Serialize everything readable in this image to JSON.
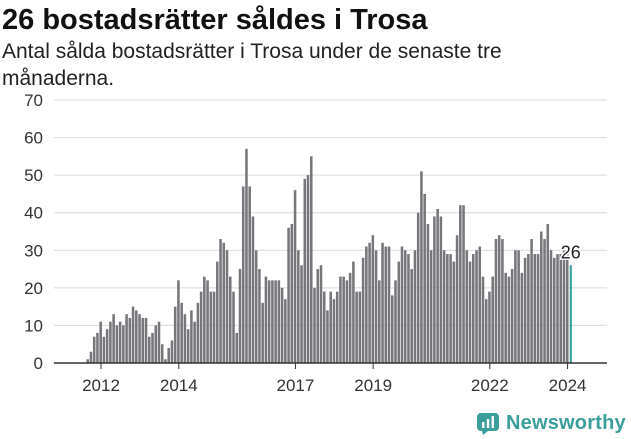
{
  "title": "26 bostadsrätter såldes i Trosa",
  "subtitle": "Antal sålda bostadsrätter i Trosa under de senaste tre månaderna.",
  "brand": {
    "name": "Newsworthy",
    "icon": "newsworthy-logo-icon",
    "color": "#3a9e9a"
  },
  "colors": {
    "bar": "#76767b",
    "highlight": "#3aa39f",
    "grid": "#d9d9d9",
    "axis": "#333333"
  },
  "chart_data": {
    "type": "bar",
    "x_label_ticks": [
      "2012",
      "2014",
      "2017",
      "2019",
      "2022",
      "2024"
    ],
    "x_label_tick_dates": [
      "2012-01",
      "2014-01",
      "2017-01",
      "2019-01",
      "2022-01",
      "2024-01"
    ],
    "ylim": [
      0,
      70
    ],
    "yticks": [
      0,
      10,
      20,
      30,
      40,
      50,
      60,
      70
    ],
    "grid": true,
    "legend": "none",
    "start_month": "2011-08",
    "values": [
      0,
      1,
      3,
      7,
      8,
      11,
      7,
      9,
      11,
      13,
      10,
      11,
      10,
      13,
      12,
      15,
      14,
      13,
      12,
      12,
      7,
      8,
      10,
      11,
      5,
      1,
      4,
      6,
      15,
      22,
      16,
      13,
      9,
      14,
      11,
      16,
      19,
      23,
      22,
      19,
      19,
      27,
      33,
      32,
      30,
      23,
      19,
      8,
      25,
      47,
      57,
      47,
      39,
      30,
      25,
      16,
      23,
      22,
      22,
      22,
      22,
      20,
      17,
      36,
      37,
      46,
      30,
      26,
      49,
      50,
      55,
      20,
      25,
      26,
      19,
      14,
      19,
      17,
      19,
      23,
      23,
      22,
      24,
      27,
      19,
      19,
      28,
      31,
      32,
      34,
      30,
      22,
      32,
      31,
      31,
      18,
      22,
      27,
      31,
      30,
      29,
      25,
      30,
      40,
      51,
      45,
      37,
      30,
      39,
      41,
      39,
      30,
      29,
      29,
      27,
      34,
      42,
      42,
      30,
      27,
      29,
      30,
      31,
      23,
      17,
      19,
      23,
      33,
      34,
      33,
      24,
      23,
      25,
      30,
      30,
      24,
      28,
      29,
      33,
      29,
      29,
      35,
      33,
      37,
      30,
      28,
      29,
      29,
      30,
      30,
      26
    ],
    "highlight_last": true,
    "annotation": {
      "text": "26",
      "value": 26
    }
  }
}
